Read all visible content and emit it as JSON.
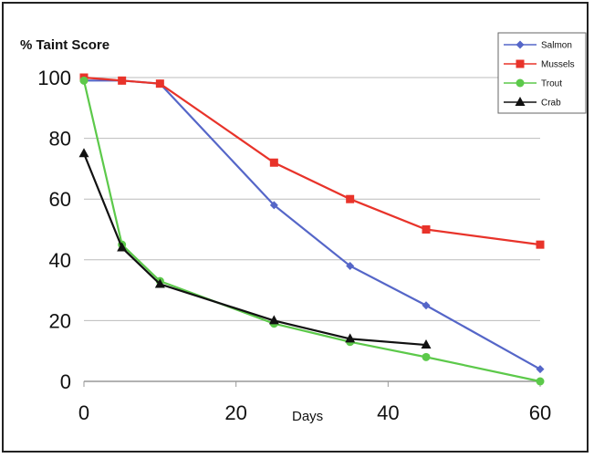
{
  "chart_data": {
    "type": "line",
    "title": "",
    "ylabel": "% Taint Score",
    "xlabel": "Days",
    "xlim": [
      0,
      60
    ],
    "ylim": [
      0,
      100
    ],
    "xticks": [
      0,
      20,
      40,
      60
    ],
    "yticks": [
      0,
      20,
      40,
      60,
      80,
      100
    ],
    "grid": "horizontal",
    "legend_position": "top-right",
    "series": [
      {
        "name": "Salmon",
        "color": "#5566c8",
        "marker": "diamond",
        "points": [
          [
            0,
            99
          ],
          [
            5,
            99
          ],
          [
            10,
            98
          ],
          [
            25,
            58
          ],
          [
            35,
            38
          ],
          [
            45,
            25
          ],
          [
            60,
            4
          ]
        ]
      },
      {
        "name": "Mussels",
        "color": "#e8332a",
        "marker": "square",
        "points": [
          [
            0,
            100
          ],
          [
            5,
            99
          ],
          [
            10,
            98
          ],
          [
            25,
            72
          ],
          [
            35,
            60
          ],
          [
            45,
            50
          ],
          [
            60,
            45
          ]
        ]
      },
      {
        "name": "Trout",
        "color": "#5cc94a",
        "marker": "circle",
        "points": [
          [
            0,
            99
          ],
          [
            5,
            45
          ],
          [
            10,
            33
          ],
          [
            25,
            19
          ],
          [
            35,
            13
          ],
          [
            45,
            8
          ],
          [
            60,
            0
          ]
        ]
      },
      {
        "name": "Crab",
        "color": "#111111",
        "marker": "triangle",
        "points": [
          [
            0,
            75
          ],
          [
            5,
            44
          ],
          [
            10,
            32
          ],
          [
            25,
            20
          ],
          [
            35,
            14
          ],
          [
            45,
            12
          ]
        ]
      }
    ]
  }
}
